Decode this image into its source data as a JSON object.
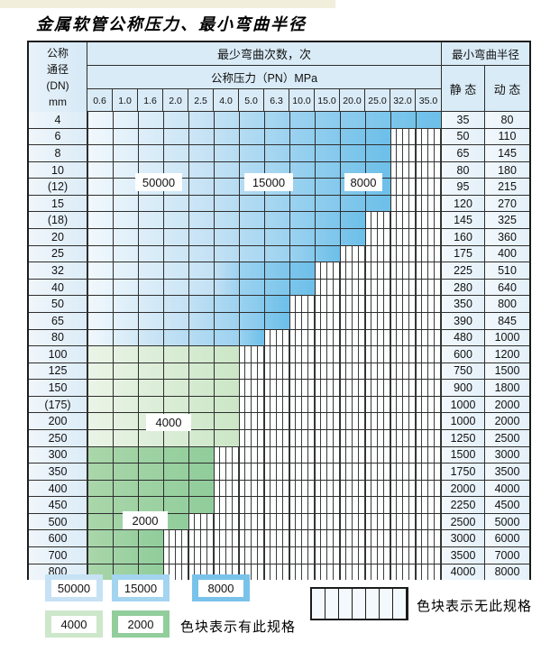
{
  "page": {
    "title": "金属软管公称压力、最小弯曲半径"
  },
  "table": {
    "header": {
      "dn_lines": [
        "公称",
        "通径",
        "(DN)",
        "mm"
      ],
      "cycles_title": "最少弯曲次数，次",
      "radius_title": "最小弯曲半径",
      "pressure_title": "公称压力（PN）MPa",
      "pressure_columns": [
        "0.6",
        "1.0",
        "1.6",
        "2.0",
        "2.5",
        "4.0",
        "5.0",
        "6.3",
        "10.0",
        "15.0",
        "20.0",
        "25.0",
        "32.0",
        "35.0"
      ],
      "static_label": "静 态",
      "dynamic_label": "动 态"
    },
    "rows": [
      {
        "dn": "4",
        "static": "35",
        "dynamic": "80",
        "band": "blue",
        "cols_50000": 5,
        "cols_15000": 3,
        "cols_8000": 6
      },
      {
        "dn": "6",
        "static": "50",
        "dynamic": "110",
        "band": "blue",
        "cols_50000": 5,
        "cols_15000": 3,
        "cols_8000": 4
      },
      {
        "dn": "8",
        "static": "65",
        "dynamic": "145",
        "band": "blue",
        "cols_50000": 5,
        "cols_15000": 3,
        "cols_8000": 4
      },
      {
        "dn": "10",
        "static": "80",
        "dynamic": "180",
        "band": "blue",
        "cols_50000": 5,
        "cols_15000": 3,
        "cols_8000": 4
      },
      {
        "dn": "(12)",
        "static": "95",
        "dynamic": "215",
        "band": "blue",
        "cols_50000": 5,
        "cols_15000": 3,
        "cols_8000": 4
      },
      {
        "dn": "15",
        "static": "120",
        "dynamic": "270",
        "band": "blue",
        "cols_50000": 5,
        "cols_15000": 3,
        "cols_8000": 4
      },
      {
        "dn": "(18)",
        "static": "145",
        "dynamic": "325",
        "band": "blue",
        "cols_50000": 5,
        "cols_15000": 3,
        "cols_8000": 3
      },
      {
        "dn": "20",
        "static": "160",
        "dynamic": "360",
        "band": "blue",
        "cols_50000": 5,
        "cols_15000": 3,
        "cols_8000": 3
      },
      {
        "dn": "25",
        "static": "175",
        "dynamic": "400",
        "band": "blue",
        "cols_50000": 5,
        "cols_15000": 3,
        "cols_8000": 2
      },
      {
        "dn": "32",
        "static": "225",
        "dynamic": "510",
        "band": "blue",
        "cols_50000": 5,
        "cols_15000": 1,
        "cols_8000": 3
      },
      {
        "dn": "40",
        "static": "280",
        "dynamic": "640",
        "band": "blue",
        "cols_50000": 5,
        "cols_15000": 1,
        "cols_8000": 3
      },
      {
        "dn": "50",
        "static": "350",
        "dynamic": "800",
        "band": "blue",
        "cols_50000": 4,
        "cols_15000": 2,
        "cols_8000": 2
      },
      {
        "dn": "65",
        "static": "390",
        "dynamic": "845",
        "band": "blue",
        "cols_50000": 4,
        "cols_15000": 2,
        "cols_8000": 2
      },
      {
        "dn": "80",
        "static": "480",
        "dynamic": "1000",
        "band": "blue",
        "cols_50000": 3,
        "cols_15000": 3,
        "cols_8000": 1
      },
      {
        "dn": "100",
        "static": "600",
        "dynamic": "1200",
        "band": "green4",
        "cols_colored": 6
      },
      {
        "dn": "125",
        "static": "750",
        "dynamic": "1500",
        "band": "green4",
        "cols_colored": 6
      },
      {
        "dn": "150",
        "static": "900",
        "dynamic": "1800",
        "band": "green4",
        "cols_colored": 6
      },
      {
        "dn": "(175)",
        "static": "1000",
        "dynamic": "2000",
        "band": "green4",
        "cols_colored": 6
      },
      {
        "dn": "200",
        "static": "1000",
        "dynamic": "2000",
        "band": "green4",
        "cols_colored": 6
      },
      {
        "dn": "250",
        "static": "1250",
        "dynamic": "2500",
        "band": "green4",
        "cols_colored": 6
      },
      {
        "dn": "300",
        "static": "1500",
        "dynamic": "3000",
        "band": "green2",
        "cols_colored": 5
      },
      {
        "dn": "350",
        "static": "1750",
        "dynamic": "3500",
        "band": "green2",
        "cols_colored": 5
      },
      {
        "dn": "400",
        "static": "2000",
        "dynamic": "4000",
        "band": "green2",
        "cols_colored": 5
      },
      {
        "dn": "450",
        "static": "2250",
        "dynamic": "4500",
        "band": "green2",
        "cols_colored": 5
      },
      {
        "dn": "500",
        "static": "2500",
        "dynamic": "5000",
        "band": "green2",
        "cols_colored": 4
      },
      {
        "dn": "600",
        "static": "3000",
        "dynamic": "6000",
        "band": "green2",
        "cols_colored": 3
      },
      {
        "dn": "700",
        "static": "3500",
        "dynamic": "7000",
        "band": "green2",
        "cols_colored": 3
      },
      {
        "dn": "800",
        "static": "4000",
        "dynamic": "8000",
        "band": "green2",
        "cols_colored": 3
      }
    ],
    "cycle_labels": {
      "l50000": "50000",
      "l15000": "15000",
      "l8000": "8000",
      "l4000": "4000",
      "l2000": "2000"
    }
  },
  "legend": {
    "items": {
      "c50000": {
        "label": "50000",
        "color": "#c6e2f4"
      },
      "c15000": {
        "label": "15000",
        "color": "#a3d4f0"
      },
      "c8000": {
        "label": "8000",
        "color": "#79c3ea"
      },
      "c4000": {
        "label": "4000",
        "color": "#cde7ca"
      },
      "c2000": {
        "label": "2000",
        "color": "#92cd9c"
      }
    },
    "available_note": "色块表示有此规格",
    "unavailable_note": "色块表示无此规格"
  },
  "palette": {
    "blue_light_start": "#f1f8fd",
    "blue_50000": "#c3e1f4",
    "blue_15000": "#9cd2f0",
    "blue_8000": "#6cbfe9",
    "green_4000_start": "#ebf4e7",
    "green_4000": "#cbe6c6",
    "green_2000_start": "#aad6aa",
    "green_2000": "#90cd9b",
    "header_bg": "#d9ebf7",
    "grid_line": "#2e2e2e"
  }
}
